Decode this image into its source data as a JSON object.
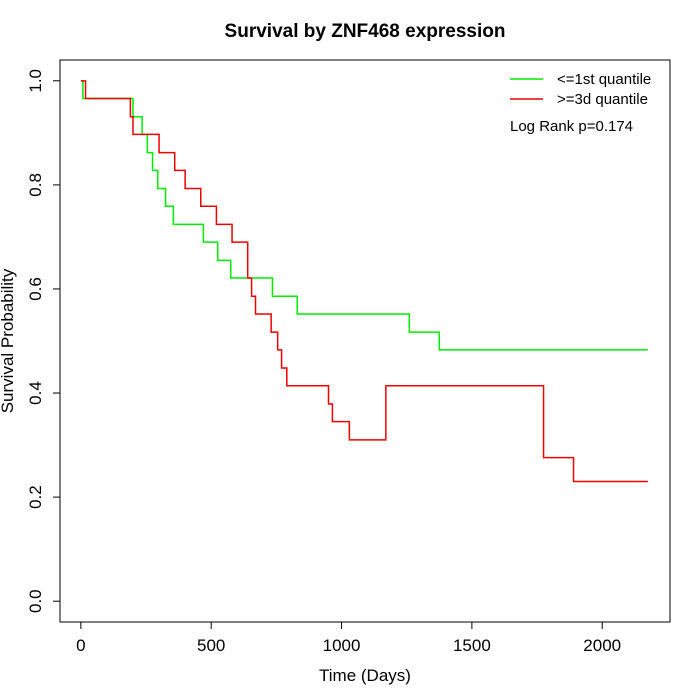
{
  "chart_data": {
    "type": "line",
    "title": "Survival by ZNF468 expression",
    "xlabel": "Time (Days)",
    "ylabel": "Survival Probability",
    "xlim": [
      -80,
      2260
    ],
    "ylim": [
      -0.04,
      1.04
    ],
    "x_ticks": [
      0,
      500,
      1000,
      1500,
      2000
    ],
    "y_ticks": [
      0.0,
      0.2,
      0.4,
      0.6,
      0.8,
      1.0
    ],
    "x_tick_labels": [
      "0",
      "500",
      "1000",
      "1500",
      "2000"
    ],
    "y_tick_labels": [
      "0.0",
      "0.2",
      "0.4",
      "0.6",
      "0.8",
      "1.0"
    ],
    "grid": false,
    "legend_position": "top-right",
    "annotation": "Log Rank p=0.174",
    "series": [
      {
        "name": "<=1st quantile",
        "color": "#00ee00",
        "x": [
          0,
          8,
          200,
          235,
          255,
          275,
          295,
          325,
          355,
          390,
          470,
          525,
          575,
          735,
          830,
          1260,
          1375,
          2175
        ],
        "y": [
          1.0,
          0.966,
          0.931,
          0.897,
          0.862,
          0.828,
          0.793,
          0.759,
          0.724,
          0.724,
          0.69,
          0.655,
          0.621,
          0.586,
          0.552,
          0.517,
          0.483,
          0.483
        ]
      },
      {
        "name": ">=3d quantile",
        "color": "#ee0000",
        "x": [
          0,
          18,
          190,
          200,
          300,
          360,
          400,
          460,
          520,
          580,
          640,
          655,
          670,
          730,
          755,
          770,
          790,
          1170,
          950,
          965,
          1030,
          1775,
          1890,
          2175
        ],
        "y": [
          1.0,
          0.966,
          0.931,
          0.897,
          0.862,
          0.828,
          0.793,
          0.759,
          0.724,
          0.69,
          0.621,
          0.586,
          0.552,
          0.517,
          0.483,
          0.448,
          0.414,
          0.414,
          0.379,
          0.345,
          0.31,
          0.276,
          0.23,
          0.23
        ]
      }
    ]
  }
}
